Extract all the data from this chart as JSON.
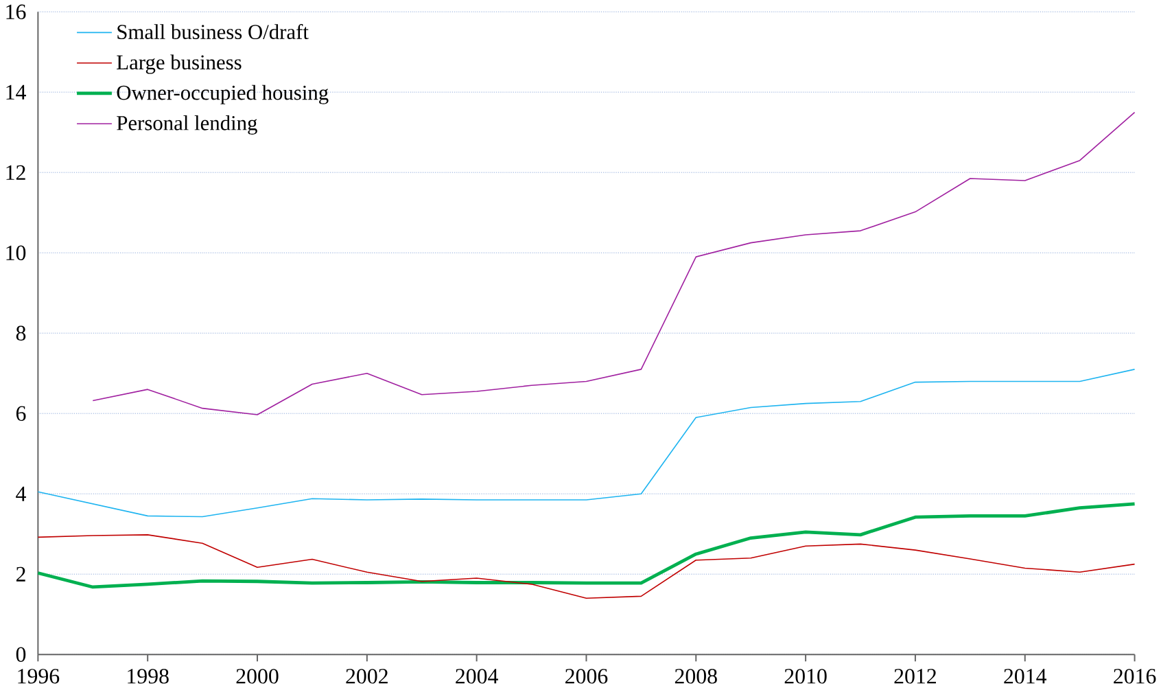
{
  "chart_data": {
    "type": "line",
    "x": [
      1996,
      1997,
      1998,
      1999,
      2000,
      2001,
      2002,
      2003,
      2004,
      2005,
      2006,
      2007,
      2008,
      2009,
      2010,
      2011,
      2012,
      2013,
      2014,
      2015,
      2016
    ],
    "series": [
      {
        "name": "Small business O/draft",
        "color": "#1eb4f0",
        "values": [
          4.05,
          3.75,
          3.45,
          3.43,
          3.65,
          3.88,
          3.85,
          3.87,
          3.85,
          3.85,
          3.85,
          4.0,
          5.9,
          6.15,
          6.25,
          6.3,
          6.78,
          6.8,
          6.8,
          6.8,
          7.1
        ]
      },
      {
        "name": "Large business",
        "color": "#c00000",
        "values": [
          2.92,
          2.96,
          2.98,
          2.77,
          2.17,
          2.37,
          2.05,
          1.82,
          1.9,
          1.75,
          1.4,
          1.45,
          2.35,
          2.4,
          2.7,
          2.75,
          2.6,
          2.38,
          2.15,
          2.05,
          2.25
        ]
      },
      {
        "name": "Owner-occupied housing",
        "color": "#00b050",
        "values": [
          2.03,
          1.68,
          1.75,
          1.83,
          1.82,
          1.78,
          1.79,
          1.81,
          1.79,
          1.79,
          1.78,
          1.78,
          2.5,
          2.9,
          3.05,
          2.98,
          3.42,
          3.45,
          3.45,
          3.65,
          3.75
        ]
      },
      {
        "name": "Personal lending",
        "color": "#a020a0",
        "values": [
          null,
          6.32,
          6.6,
          6.13,
          5.97,
          6.73,
          7.0,
          6.47,
          6.55,
          6.7,
          6.8,
          7.1,
          9.9,
          10.25,
          10.45,
          10.55,
          11.02,
          11.85,
          11.8,
          12.3,
          13.5
        ]
      }
    ],
    "xlim": [
      1996,
      2016
    ],
    "xticks": [
      1996,
      1998,
      2000,
      2002,
      2004,
      2006,
      2008,
      2010,
      2012,
      2014,
      2016
    ],
    "ylim": [
      0,
      16
    ],
    "yticks": [
      0,
      2,
      4,
      6,
      8,
      10,
      12,
      14,
      16
    ],
    "grid": "y",
    "legend": "top left",
    "marker": "none",
    "line_style": "solid"
  }
}
